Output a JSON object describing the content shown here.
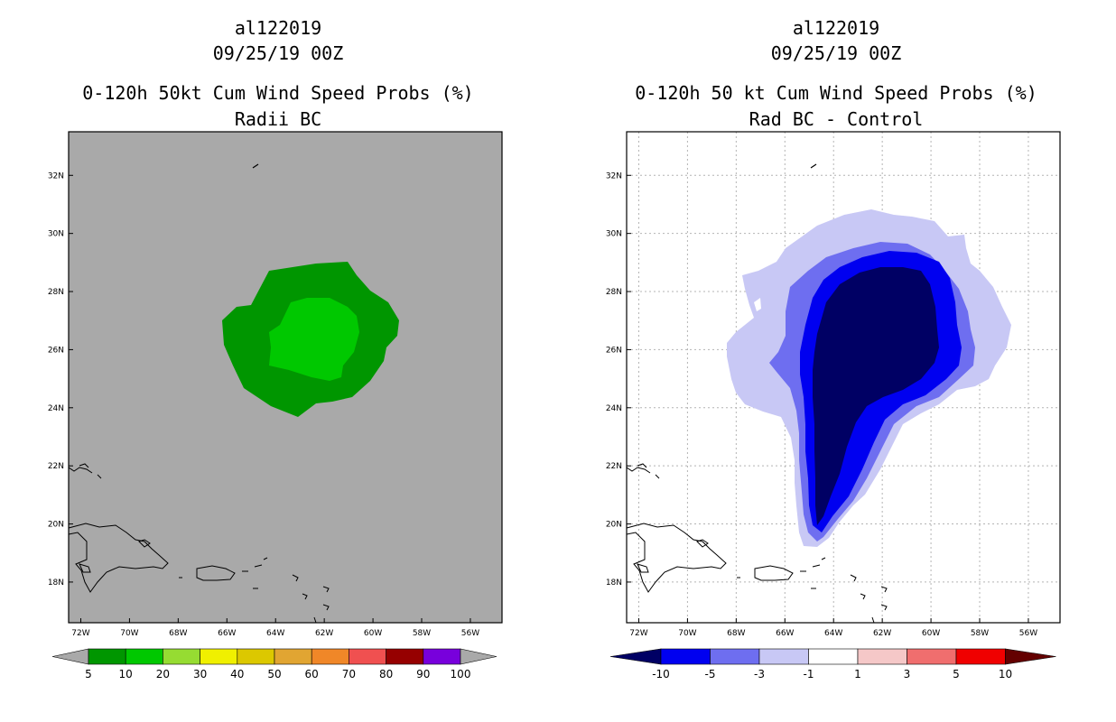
{
  "panels": [
    {
      "title_line1": "al122019",
      "title_line2": "09/25/19 00Z",
      "title_line3": "0-120h 50kt Cum Wind Speed Probs (%)",
      "title_line4": "Radii BC",
      "background_color": "#a9a9a9",
      "legend": {
        "labels": [
          "5",
          "10",
          "20",
          "30",
          "40",
          "50",
          "60",
          "70",
          "80",
          "90",
          "100"
        ],
        "colors": [
          "#009600",
          "#00c800",
          "#96dc32",
          "#f0f000",
          "#dcc800",
          "#e1a532",
          "#f08728",
          "#f05050",
          "#960000",
          "#7800dc"
        ],
        "arrow_color": "#a9a9a9"
      }
    },
    {
      "title_line1": "al122019",
      "title_line2": "09/25/19 00Z",
      "title_line3": "0-120h 50 kt Cum Wind Speed Probs (%)",
      "title_line4": "Rad BC - Control",
      "background_color": "#ffffff",
      "legend": {
        "labels": [
          "-10",
          "-5",
          "-3",
          "-1",
          "1",
          "3",
          "5",
          "10"
        ],
        "colors": [
          "#0000f0",
          "#6e6ef0",
          "#c8c8f5",
          "#ffffff",
          "#f5c8c8",
          "#f06e6e",
          "#f00000"
        ],
        "low_arrow_color": "#000064",
        "high_arrow_color": "#640000"
      }
    }
  ],
  "chart_data": [
    {
      "type": "heatmap",
      "title": "0-120h 50kt Cum Wind Speed Probs (%)",
      "subtitle": "Radii BC",
      "storm": "al122019",
      "time": "09/25/19 00Z",
      "x_ticks": [
        "72W",
        "70W",
        "68W",
        "66W",
        "64W",
        "62W",
        "60W",
        "58W",
        "56W"
      ],
      "y_ticks": [
        "18N",
        "20N",
        "22N",
        "24N",
        "26N",
        "28N",
        "30N",
        "32N"
      ],
      "xlim": [
        -72.5,
        -54.7
      ],
      "ylim": [
        16.6,
        33.5
      ],
      "grid": false,
      "contour_levels": [
        5,
        10,
        20,
        30,
        40,
        50,
        60,
        70,
        80,
        90,
        100
      ],
      "regions": [
        {
          "level": "5-10",
          "color": "#009600",
          "center_lon": -62.5,
          "center_lat": 26.4
        },
        {
          "level": "10-20",
          "color": "#00c800",
          "center_lon": -62.3,
          "center_lat": 26.2
        }
      ]
    },
    {
      "type": "heatmap",
      "title": "0-120h 50 kt Cum Wind Speed Probs (%)",
      "subtitle": "Rad BC - Control",
      "storm": "al122019",
      "time": "09/25/19 00Z",
      "x_ticks": [
        "72W",
        "70W",
        "68W",
        "66W",
        "64W",
        "62W",
        "60W",
        "58W",
        "56W"
      ],
      "y_ticks": [
        "18N",
        "20N",
        "22N",
        "24N",
        "26N",
        "28N",
        "30N",
        "32N"
      ],
      "xlim": [
        -72.5,
        -54.7
      ],
      "ylim": [
        16.6,
        33.5
      ],
      "grid": true,
      "contour_levels": [
        -10,
        -5,
        -3,
        -1,
        1,
        3,
        5,
        10
      ],
      "regions": [
        {
          "level": "-3 to -1",
          "color": "#c8c8f5",
          "center_lon": -62.5,
          "center_lat": 25.5
        },
        {
          "level": "-5 to -3",
          "color": "#6e6ef0",
          "center_lon": -62.5,
          "center_lat": 25.0
        },
        {
          "level": "-10 to -5",
          "color": "#0000f0",
          "center_lon": -62.8,
          "center_lat": 24.8
        },
        {
          "level": "< -10",
          "color": "#000064",
          "center_lon": -63.0,
          "center_lat": 25.0
        }
      ]
    }
  ]
}
